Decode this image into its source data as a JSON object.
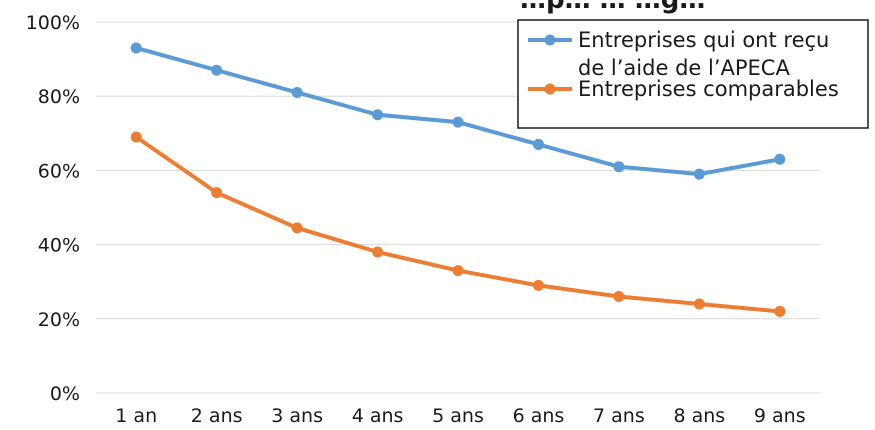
{
  "chart_data": {
    "type": "line",
    "title_fragment": "…p… … …g…",
    "categories": [
      "1 an",
      "2 ans",
      "3 ans",
      "4 ans",
      "5 ans",
      "6 ans",
      "7 ans",
      "8 ans",
      "9 ans"
    ],
    "y_ticks": [
      "0%",
      "20%",
      "40%",
      "60%",
      "80%",
      "100%"
    ],
    "ylim": [
      0,
      100
    ],
    "grid": true,
    "legend_position": "top-right",
    "series": [
      {
        "name": "Entreprises qui ont reçu de l’aide de l’APECA",
        "legend_lines": [
          "Entreprises qui ont reçu",
          "de l’aide de l’APECA"
        ],
        "color": "#5B9BD5",
        "values": [
          93,
          87,
          81,
          75,
          73,
          67,
          61,
          59,
          63
        ]
      },
      {
        "name": "Entreprises comparables",
        "legend_lines": [
          "Entreprises comparables"
        ],
        "color": "#ED7D31",
        "values": [
          69,
          54,
          44.5,
          38,
          33,
          29,
          26,
          24,
          22
        ]
      }
    ]
  }
}
